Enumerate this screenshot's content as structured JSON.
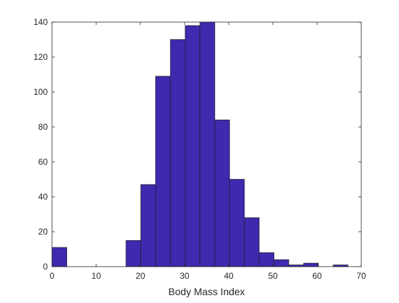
{
  "chart_data": {
    "type": "bar",
    "subtype": "histogram",
    "xlabel": "Body Mass Index",
    "ylabel": "",
    "title": "",
    "xlim": [
      0,
      70
    ],
    "ylim": [
      0,
      140
    ],
    "xticks": [
      0,
      10,
      20,
      30,
      40,
      50,
      60,
      70
    ],
    "yticks": [
      0,
      20,
      40,
      60,
      80,
      100,
      120,
      140
    ],
    "grid": false,
    "bar_color": "#3F29AF",
    "edge_color": "#1F1F1F",
    "bin_edges": [
      0,
      3.35,
      6.7,
      10.05,
      13.4,
      16.75,
      20.1,
      23.45,
      26.8,
      30.15,
      33.5,
      36.85,
      40.2,
      43.55,
      46.9,
      50.25,
      53.6,
      56.95,
      60.3,
      63.65,
      67
    ],
    "counts": [
      11,
      0,
      0,
      0,
      0,
      15,
      47,
      109,
      130,
      138,
      140,
      84,
      50,
      28,
      8,
      4,
      1,
      2,
      0,
      1
    ]
  }
}
